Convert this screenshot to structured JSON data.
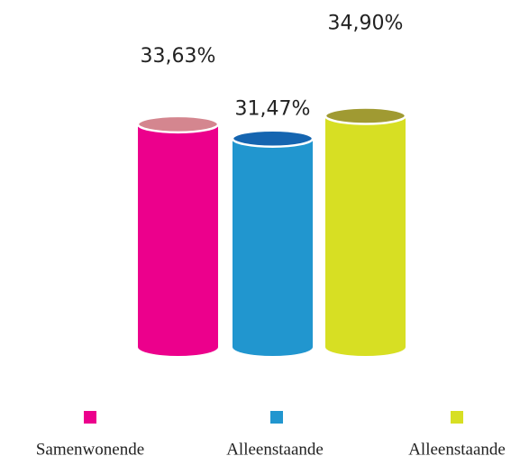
{
  "chart_data": {
    "type": "bar",
    "categories": [
      "Samenwonende",
      "Alleenstaande",
      "Alleenstaande"
    ],
    "values": [
      33.63,
      31.47,
      34.9
    ],
    "value_labels": [
      "33,63%",
      "31,47%",
      "34,90%"
    ],
    "colors": [
      "#ec008c",
      "#2196cf",
      "#d7df23"
    ],
    "top_colors": [
      "#d4868f",
      "#1565b0",
      "#a09a32"
    ]
  }
}
